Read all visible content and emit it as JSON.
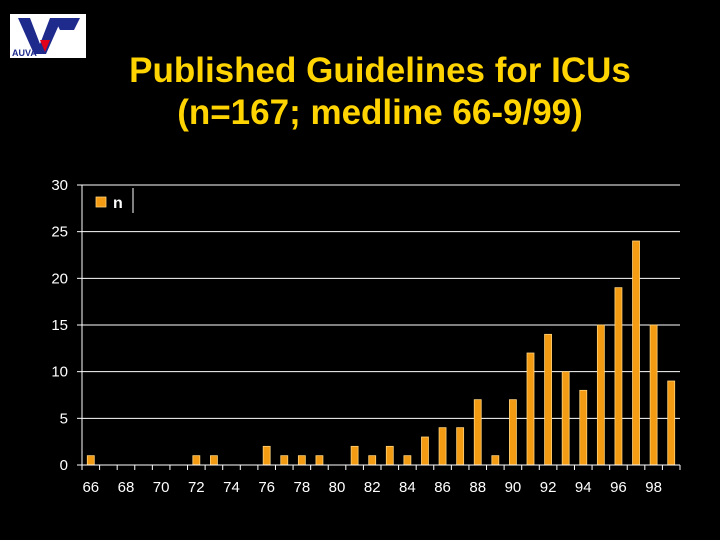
{
  "logo": {
    "text": "AUVA"
  },
  "title_line1": "Published Guidelines for ICUs",
  "title_line2": "(n=167; medline 66-9/99)",
  "colors": {
    "bar": "#F29B13",
    "bar_edge": "#FFD27A",
    "title": "#FFD400",
    "axis": "#FFFFFF",
    "background": "#000000"
  },
  "chart_data": {
    "type": "bar",
    "title": "Published Guidelines for ICUs (n=167; medline 66-9/99)",
    "xlabel": "",
    "ylabel": "",
    "ylim": [
      0,
      30
    ],
    "yticks": [
      0,
      5,
      10,
      15,
      20,
      25,
      30
    ],
    "grid": "horizontal",
    "legend": {
      "position": "top-left",
      "entries": [
        "n"
      ]
    },
    "categories": [
      "66",
      "67",
      "68",
      "69",
      "70",
      "71",
      "72",
      "73",
      "74",
      "75",
      "76",
      "77",
      "78",
      "79",
      "80",
      "81",
      "82",
      "83",
      "84",
      "85",
      "86",
      "87",
      "88",
      "89",
      "90",
      "91",
      "92",
      "93",
      "94",
      "95",
      "96",
      "97",
      "98",
      "99"
    ],
    "tick_labels": [
      "66",
      "68",
      "70",
      "72",
      "74",
      "76",
      "78",
      "80",
      "82",
      "84",
      "86",
      "88",
      "90",
      "92",
      "94",
      "96",
      "98"
    ],
    "series": [
      {
        "name": "n",
        "values": [
          1,
          0,
          0,
          0,
          0,
          0,
          1,
          1,
          0,
          0,
          2,
          1,
          1,
          1,
          0,
          2,
          1,
          2,
          1,
          3,
          4,
          4,
          7,
          1,
          7,
          12,
          14,
          10,
          8,
          15,
          19,
          24,
          15,
          9
        ]
      }
    ]
  }
}
